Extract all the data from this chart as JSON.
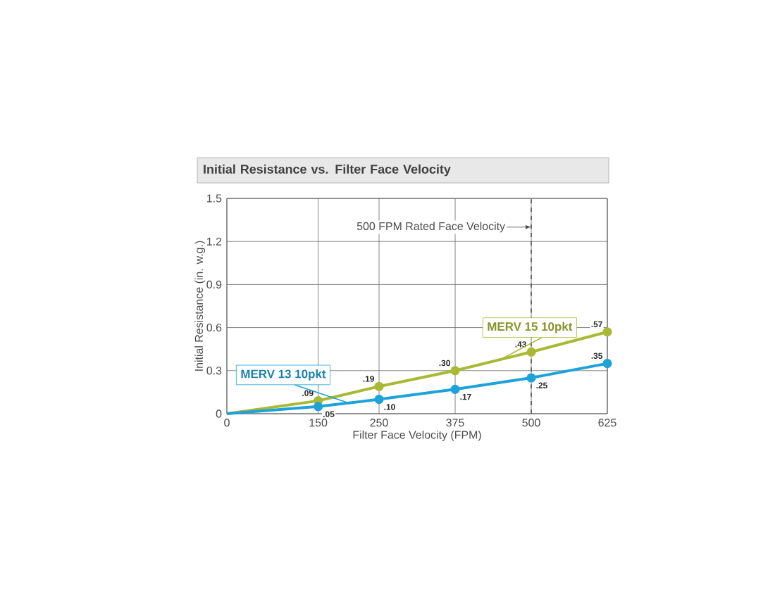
{
  "chart_data": {
    "type": "line",
    "title": "Initial Resistance vs. Filter Face Velocity",
    "xlabel": "Filter Face Velocity (FPM)",
    "ylabel": "Initial Resistance (in. w.g.)",
    "x": [
      0,
      150,
      250,
      375,
      500,
      625
    ],
    "series": [
      {
        "name": "MERV 15 10pkt",
        "color": "#a9b934",
        "values": [
          0,
          0.09,
          0.19,
          0.3,
          0.43,
          0.57
        ],
        "value_labels": [
          null,
          ".09",
          ".19",
          ".30",
          ".43",
          ".57"
        ]
      },
      {
        "name": "MERV 13 10pkt",
        "color": "#1ea2da",
        "values": [
          0,
          0.05,
          0.1,
          0.17,
          0.25,
          0.35
        ],
        "value_labels": [
          null,
          ".05",
          ".10",
          ".17",
          ".25",
          ".35"
        ]
      }
    ],
    "xlim": [
      0,
      625
    ],
    "xticks": [
      0,
      150,
      250,
      375,
      500,
      625
    ],
    "ylim": [
      0,
      1.5
    ],
    "yticks": [
      0,
      0.3,
      0.6,
      0.9,
      1.2,
      1.5
    ],
    "grid": true,
    "marker": "circle",
    "ref_lines": [
      {
        "axis": "x",
        "value": 500,
        "label": "500 FPM Rated Face Velocity",
        "line_style": "dashed",
        "color": "#555555"
      }
    ]
  }
}
